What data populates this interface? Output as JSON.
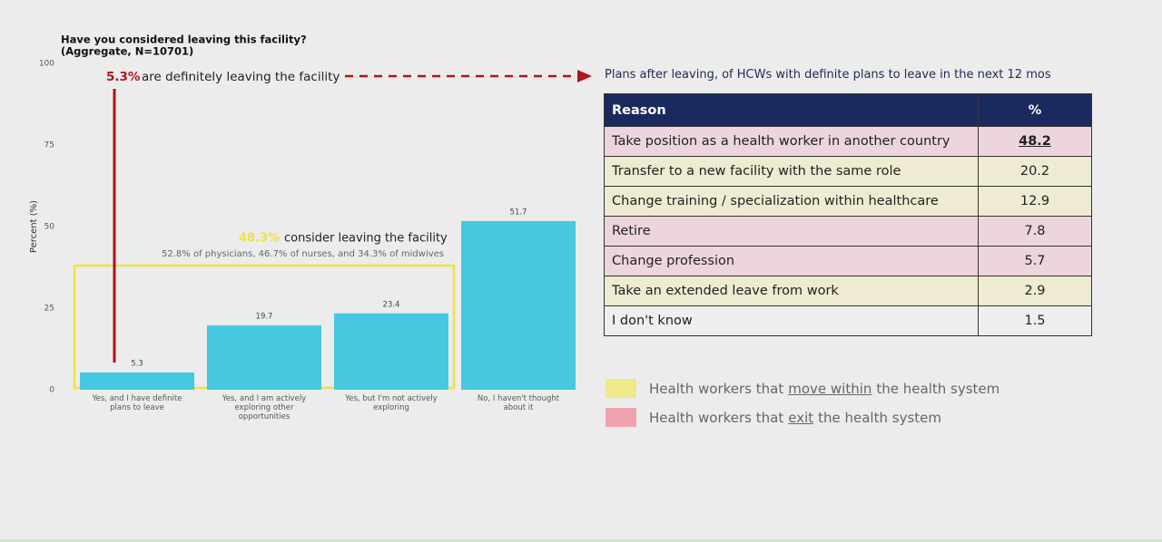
{
  "chart_data": {
    "type": "bar",
    "title": "Have you considered leaving this facility?",
    "subtitle": "(Aggregate, N=10701)",
    "ylabel": "Percent (%)",
    "categories": [
      "Yes, and I have definite plans to leave",
      "Yes, and I am actively exploring other opportunities",
      "Yes, but I'm not actively exploring",
      "No, I haven't thought about it"
    ],
    "values": [
      5.3,
      19.7,
      23.4,
      51.7
    ],
    "color": "#45c8e0",
    "ylim": [
      0,
      100
    ],
    "yticks": [
      0,
      25,
      50,
      75,
      100
    ],
    "grid": false,
    "annotations": {
      "leaving_pct": "5.3%",
      "leaving_text": "are definitely leaving the facility",
      "consider_pct": "48.3%",
      "consider_text": "consider leaving the facility",
      "consider_detail": "52.8% of physicians, 46.7% of nurses, and 34.3% of midwives"
    }
  },
  "table": {
    "title": "Plans after leaving, of HCWs with definite plans to leave in the next 12 mos",
    "header": [
      "Reason",
      "%"
    ],
    "rows": [
      {
        "reason": "Take position as a health worker in another country",
        "pct": 48.2,
        "color": "#ecd6dc"
      },
      {
        "reason": "Transfer to a new facility with the same role",
        "pct": 20.2,
        "color": "#eeebd2"
      },
      {
        "reason": "Change training / specialization within healthcare",
        "pct": 12.9,
        "color": "#eeebd2"
      },
      {
        "reason": "Retire",
        "pct": 7.8,
        "color": "#ecd6dc"
      },
      {
        "reason": "Change profession",
        "pct": 5.7,
        "color": "#ecd6dc"
      },
      {
        "reason": "Take an extended leave from work",
        "pct": 2.9,
        "color": "#eeebd2"
      },
      {
        "reason": "I don't know",
        "pct": 1.5,
        "color": "#efefef"
      }
    ]
  },
  "legend": [
    {
      "color": "#efe98a",
      "prefix": "Health workers that",
      "emphasis": "move within",
      "suffix": "the health system"
    },
    {
      "color": "#f0a2ad",
      "prefix": "Health workers that",
      "emphasis": "exit",
      "suffix": "the health system"
    }
  ]
}
